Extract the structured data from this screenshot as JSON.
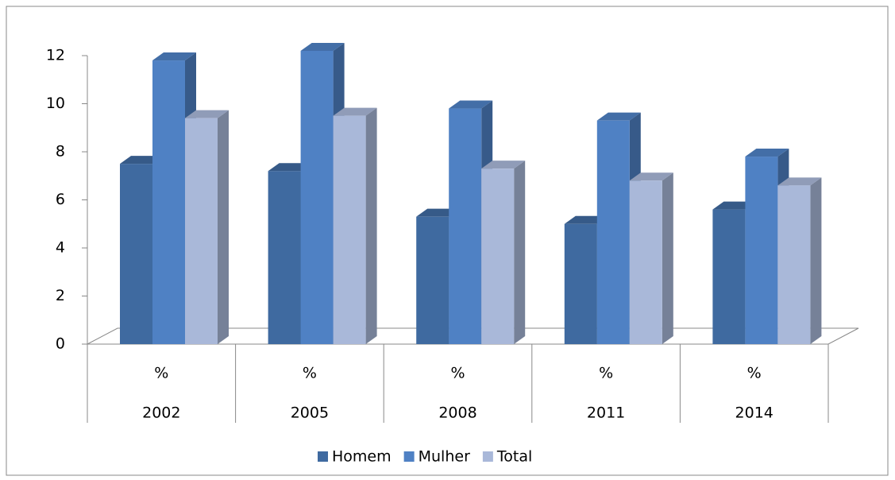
{
  "chart_data": {
    "type": "bar3d",
    "categories": [
      "2002",
      "2005",
      "2008",
      "2011",
      "2014"
    ],
    "subcategories": [
      "%",
      "%",
      "%",
      "%",
      "%"
    ],
    "series": [
      {
        "name": "Homem",
        "color": "#3f6aa0",
        "values": [
          7.5,
          7.2,
          5.3,
          5.0,
          5.6
        ]
      },
      {
        "name": "Mulher",
        "color": "#4f81c4",
        "values": [
          11.8,
          12.2,
          9.8,
          9.3,
          7.8
        ]
      },
      {
        "name": "Total",
        "color": "#a9b8d9",
        "values": [
          9.4,
          9.5,
          7.3,
          6.8,
          6.6
        ]
      }
    ],
    "ylim": [
      0,
      12
    ],
    "yticks": [
      0,
      2,
      4,
      6,
      8,
      10,
      12
    ],
    "legend": "bottom"
  }
}
